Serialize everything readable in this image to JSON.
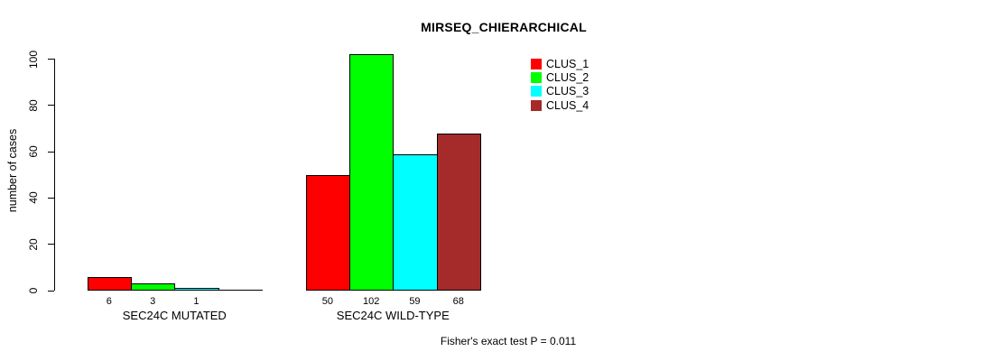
{
  "chart_data": {
    "type": "bar",
    "title": "MIRSEQ_CHIERARCHICAL",
    "ylabel": "number of cases",
    "ylim": [
      0,
      100
    ],
    "yticks": [
      0,
      20,
      40,
      60,
      80,
      100
    ],
    "grid": false,
    "legend_position": "top-right",
    "series": [
      "CLUS_1",
      "CLUS_2",
      "CLUS_3",
      "CLUS_4"
    ],
    "colors": [
      "#ff0000",
      "#00ff00",
      "#00ffff",
      "#a52a2a"
    ],
    "groups": [
      {
        "label": "SEC24C MUTATED",
        "values": [
          6,
          3,
          1,
          0
        ],
        "bar_labels": [
          "6",
          "3",
          "1",
          ""
        ]
      },
      {
        "label": "SEC24C WILD-TYPE",
        "values": [
          50,
          102,
          59,
          68
        ],
        "bar_labels": [
          "50",
          "102",
          "59",
          "68"
        ]
      }
    ],
    "annotation": "Fisher's exact test P = 0.011"
  }
}
